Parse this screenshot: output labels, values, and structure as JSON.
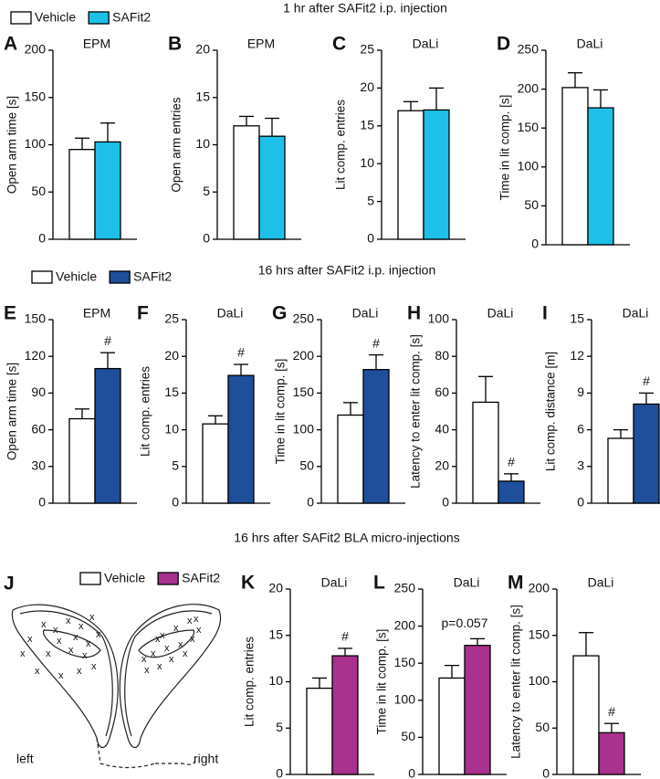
{
  "rows": [
    {
      "title": "1 hr after SAFit2 i.p. injection",
      "legend": [
        {
          "name": "Vehicle",
          "color": "#ffffff"
        },
        {
          "name": "SAFit2",
          "color": "#1ec0e8"
        }
      ]
    },
    {
      "title": "16 hrs after SAFit2 i.p. injection",
      "legend": [
        {
          "name": "Vehicle",
          "color": "#ffffff"
        },
        {
          "name": "SAFit2",
          "color": "#1f4e9b"
        }
      ]
    },
    {
      "title": "16 hrs after SAFit2 BLA micro-injections",
      "legend": [
        {
          "name": "Vehicle",
          "color": "#ffffff"
        },
        {
          "name": "SAFit2",
          "color": "#a8328e"
        }
      ]
    }
  ],
  "diagram": {
    "panel": "J",
    "left": "left",
    "right": "right"
  },
  "chart_data": [
    {
      "type": "bar",
      "panel": "A",
      "title": "EPM",
      "ylabel": "Open arm time [s]",
      "ylim": [
        0,
        200
      ],
      "yticks": [
        0,
        50,
        100,
        150,
        200
      ],
      "values": [
        95,
        103
      ],
      "errors": [
        12,
        20
      ],
      "colors": [
        "#ffffff",
        "#1ec0e8"
      ],
      "annotations": [
        null,
        null
      ]
    },
    {
      "type": "bar",
      "panel": "B",
      "title": "EPM",
      "ylabel": "Open arm entries",
      "ylim": [
        0,
        20
      ],
      "yticks": [
        0,
        5,
        10,
        15,
        20
      ],
      "values": [
        12,
        10.9
      ],
      "errors": [
        1,
        1.9
      ],
      "colors": [
        "#ffffff",
        "#1ec0e8"
      ],
      "annotations": [
        null,
        null
      ]
    },
    {
      "type": "bar",
      "panel": "C",
      "title": "DaLi",
      "ylabel": "Lit comp. entries",
      "ylim": [
        0,
        25
      ],
      "yticks": [
        0,
        5,
        10,
        15,
        20,
        25
      ],
      "values": [
        17,
        17.1
      ],
      "errors": [
        1.2,
        2.9
      ],
      "colors": [
        "#ffffff",
        "#1ec0e8"
      ],
      "annotations": [
        null,
        null
      ]
    },
    {
      "type": "bar",
      "panel": "D",
      "title": "DaLi",
      "ylabel": "Time in lit comp. [s]",
      "ylim": [
        0,
        250
      ],
      "yticks": [
        0,
        50,
        100,
        150,
        200,
        250
      ],
      "values": [
        202,
        176
      ],
      "errors": [
        19,
        23
      ],
      "colors": [
        "#ffffff",
        "#1ec0e8"
      ],
      "annotations": [
        null,
        null
      ]
    },
    {
      "type": "bar",
      "panel": "E",
      "title": "EPM",
      "ylabel": "Open arm time [s]",
      "ylim": [
        0,
        150
      ],
      "yticks": [
        0,
        30,
        60,
        90,
        120,
        150
      ],
      "values": [
        69,
        110
      ],
      "errors": [
        8,
        13
      ],
      "colors": [
        "#ffffff",
        "#1f4e9b"
      ],
      "annotations": [
        null,
        "#"
      ]
    },
    {
      "type": "bar",
      "panel": "F",
      "title": "DaLi",
      "ylabel": "Lit comp. entries",
      "ylim": [
        0,
        25
      ],
      "yticks": [
        0,
        5,
        10,
        15,
        20,
        25
      ],
      "values": [
        10.8,
        17.4
      ],
      "errors": [
        1.1,
        1.5
      ],
      "colors": [
        "#ffffff",
        "#1f4e9b"
      ],
      "annotations": [
        null,
        "#"
      ]
    },
    {
      "type": "bar",
      "panel": "G",
      "title": "DaLi",
      "ylabel": "Time in lit comp. [s]",
      "ylim": [
        0,
        250
      ],
      "yticks": [
        0,
        50,
        100,
        150,
        200,
        250
      ],
      "values": [
        120,
        182
      ],
      "errors": [
        17,
        20
      ],
      "colors": [
        "#ffffff",
        "#1f4e9b"
      ],
      "annotations": [
        null,
        "#"
      ]
    },
    {
      "type": "bar",
      "panel": "H",
      "title": "DaLi",
      "ylabel": "Latency to enter lit comp. [s]",
      "ylim": [
        0,
        100
      ],
      "yticks": [
        0,
        20,
        40,
        60,
        80,
        100
      ],
      "values": [
        55,
        12
      ],
      "errors": [
        14,
        4
      ],
      "colors": [
        "#ffffff",
        "#1f4e9b"
      ],
      "annotations": [
        null,
        "#"
      ]
    },
    {
      "type": "bar",
      "panel": "I",
      "title": "DaLi",
      "ylabel": "Lit comp. distance [m]",
      "ylim": [
        0,
        15
      ],
      "yticks": [
        0,
        3,
        6,
        9,
        12,
        15
      ],
      "values": [
        5.3,
        8.1
      ],
      "errors": [
        0.7,
        0.9
      ],
      "colors": [
        "#ffffff",
        "#1f4e9b"
      ],
      "annotations": [
        null,
        "#"
      ]
    },
    {
      "type": "bar",
      "panel": "K",
      "title": "DaLi",
      "ylabel": "Lit comp. entries",
      "ylim": [
        0,
        20
      ],
      "yticks": [
        0,
        5,
        10,
        15,
        20
      ],
      "values": [
        9.3,
        12.8
      ],
      "errors": [
        1.1,
        0.8
      ],
      "colors": [
        "#ffffff",
        "#a8328e"
      ],
      "annotations": [
        null,
        "#"
      ]
    },
    {
      "type": "bar",
      "panel": "L",
      "title": "DaLi",
      "ylabel": "Time in lit comp. [s]",
      "ylim": [
        0,
        250
      ],
      "yticks": [
        0,
        50,
        100,
        150,
        200,
        250
      ],
      "values": [
        130,
        174
      ],
      "errors": [
        17,
        9
      ],
      "colors": [
        "#ffffff",
        "#a8328e"
      ],
      "annotations": [
        null,
        null
      ],
      "note": "p=0.057"
    },
    {
      "type": "bar",
      "panel": "M",
      "title": "DaLi",
      "ylabel": "Latency to enter lit comp. [s]",
      "ylim": [
        0,
        200
      ],
      "yticks": [
        0,
        50,
        100,
        150,
        200
      ],
      "values": [
        128,
        45
      ],
      "errors": [
        25,
        10
      ],
      "colors": [
        "#ffffff",
        "#a8328e"
      ],
      "annotations": [
        null,
        "#"
      ]
    }
  ]
}
